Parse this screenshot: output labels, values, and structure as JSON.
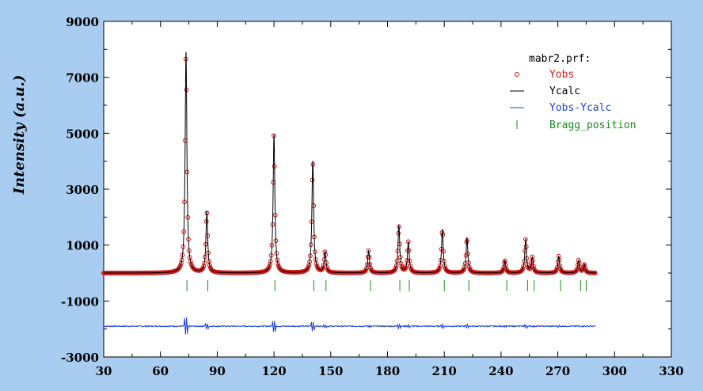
{
  "chart_data": {
    "type": "line",
    "title": "",
    "xlabel": "",
    "ylabel": "Intensity (a.u.)",
    "xlim": [
      30,
      330
    ],
    "ylim": [
      -3000,
      9000
    ],
    "x_ticks": [
      30,
      60,
      90,
      120,
      150,
      180,
      210,
      240,
      270,
      300,
      330
    ],
    "y_ticks": [
      -3000,
      -1000,
      1000,
      3000,
      5000,
      7000,
      9000
    ],
    "grid": false,
    "baseline": 0,
    "x_range": [
      30,
      290
    ],
    "difference_offset": -1900,
    "legend": {
      "placement": "top-right",
      "title": "mabr2.prf:",
      "entries": [
        {
          "key": "yobs",
          "label": "Yobs",
          "color": "#d41a1a",
          "marker": "circle"
        },
        {
          "key": "ycalc",
          "label": "Ycalc",
          "color": "#000000",
          "marker": "line"
        },
        {
          "key": "diff",
          "label": "Yobs-Ycalc",
          "color": "#1f3fd8",
          "marker": "line"
        },
        {
          "key": "bragg",
          "label": "Bragg_position",
          "color": "#1a8a1a",
          "marker": "tick"
        }
      ]
    },
    "peaks": [
      {
        "x": 73.5,
        "intensity": 7900
      },
      {
        "x": 84.5,
        "intensity": 2200
      },
      {
        "x": 120,
        "intensity": 4950
      },
      {
        "x": 140.5,
        "intensity": 4000
      },
      {
        "x": 147,
        "intensity": 750
      },
      {
        "x": 170,
        "intensity": 800
      },
      {
        "x": 186,
        "intensity": 1700
      },
      {
        "x": 191,
        "intensity": 1100
      },
      {
        "x": 209,
        "intensity": 1550
      },
      {
        "x": 222,
        "intensity": 1250
      },
      {
        "x": 242,
        "intensity": 450
      },
      {
        "x": 253,
        "intensity": 1200
      },
      {
        "x": 256.5,
        "intensity": 550
      },
      {
        "x": 270.5,
        "intensity": 600
      },
      {
        "x": 281,
        "intensity": 450
      },
      {
        "x": 284,
        "intensity": 300
      }
    ],
    "bragg_positions": [
      74,
      85,
      120.5,
      141,
      147.5,
      171,
      186.5,
      191.5,
      210,
      223,
      243,
      254,
      257.5,
      271.5,
      282,
      285
    ]
  }
}
